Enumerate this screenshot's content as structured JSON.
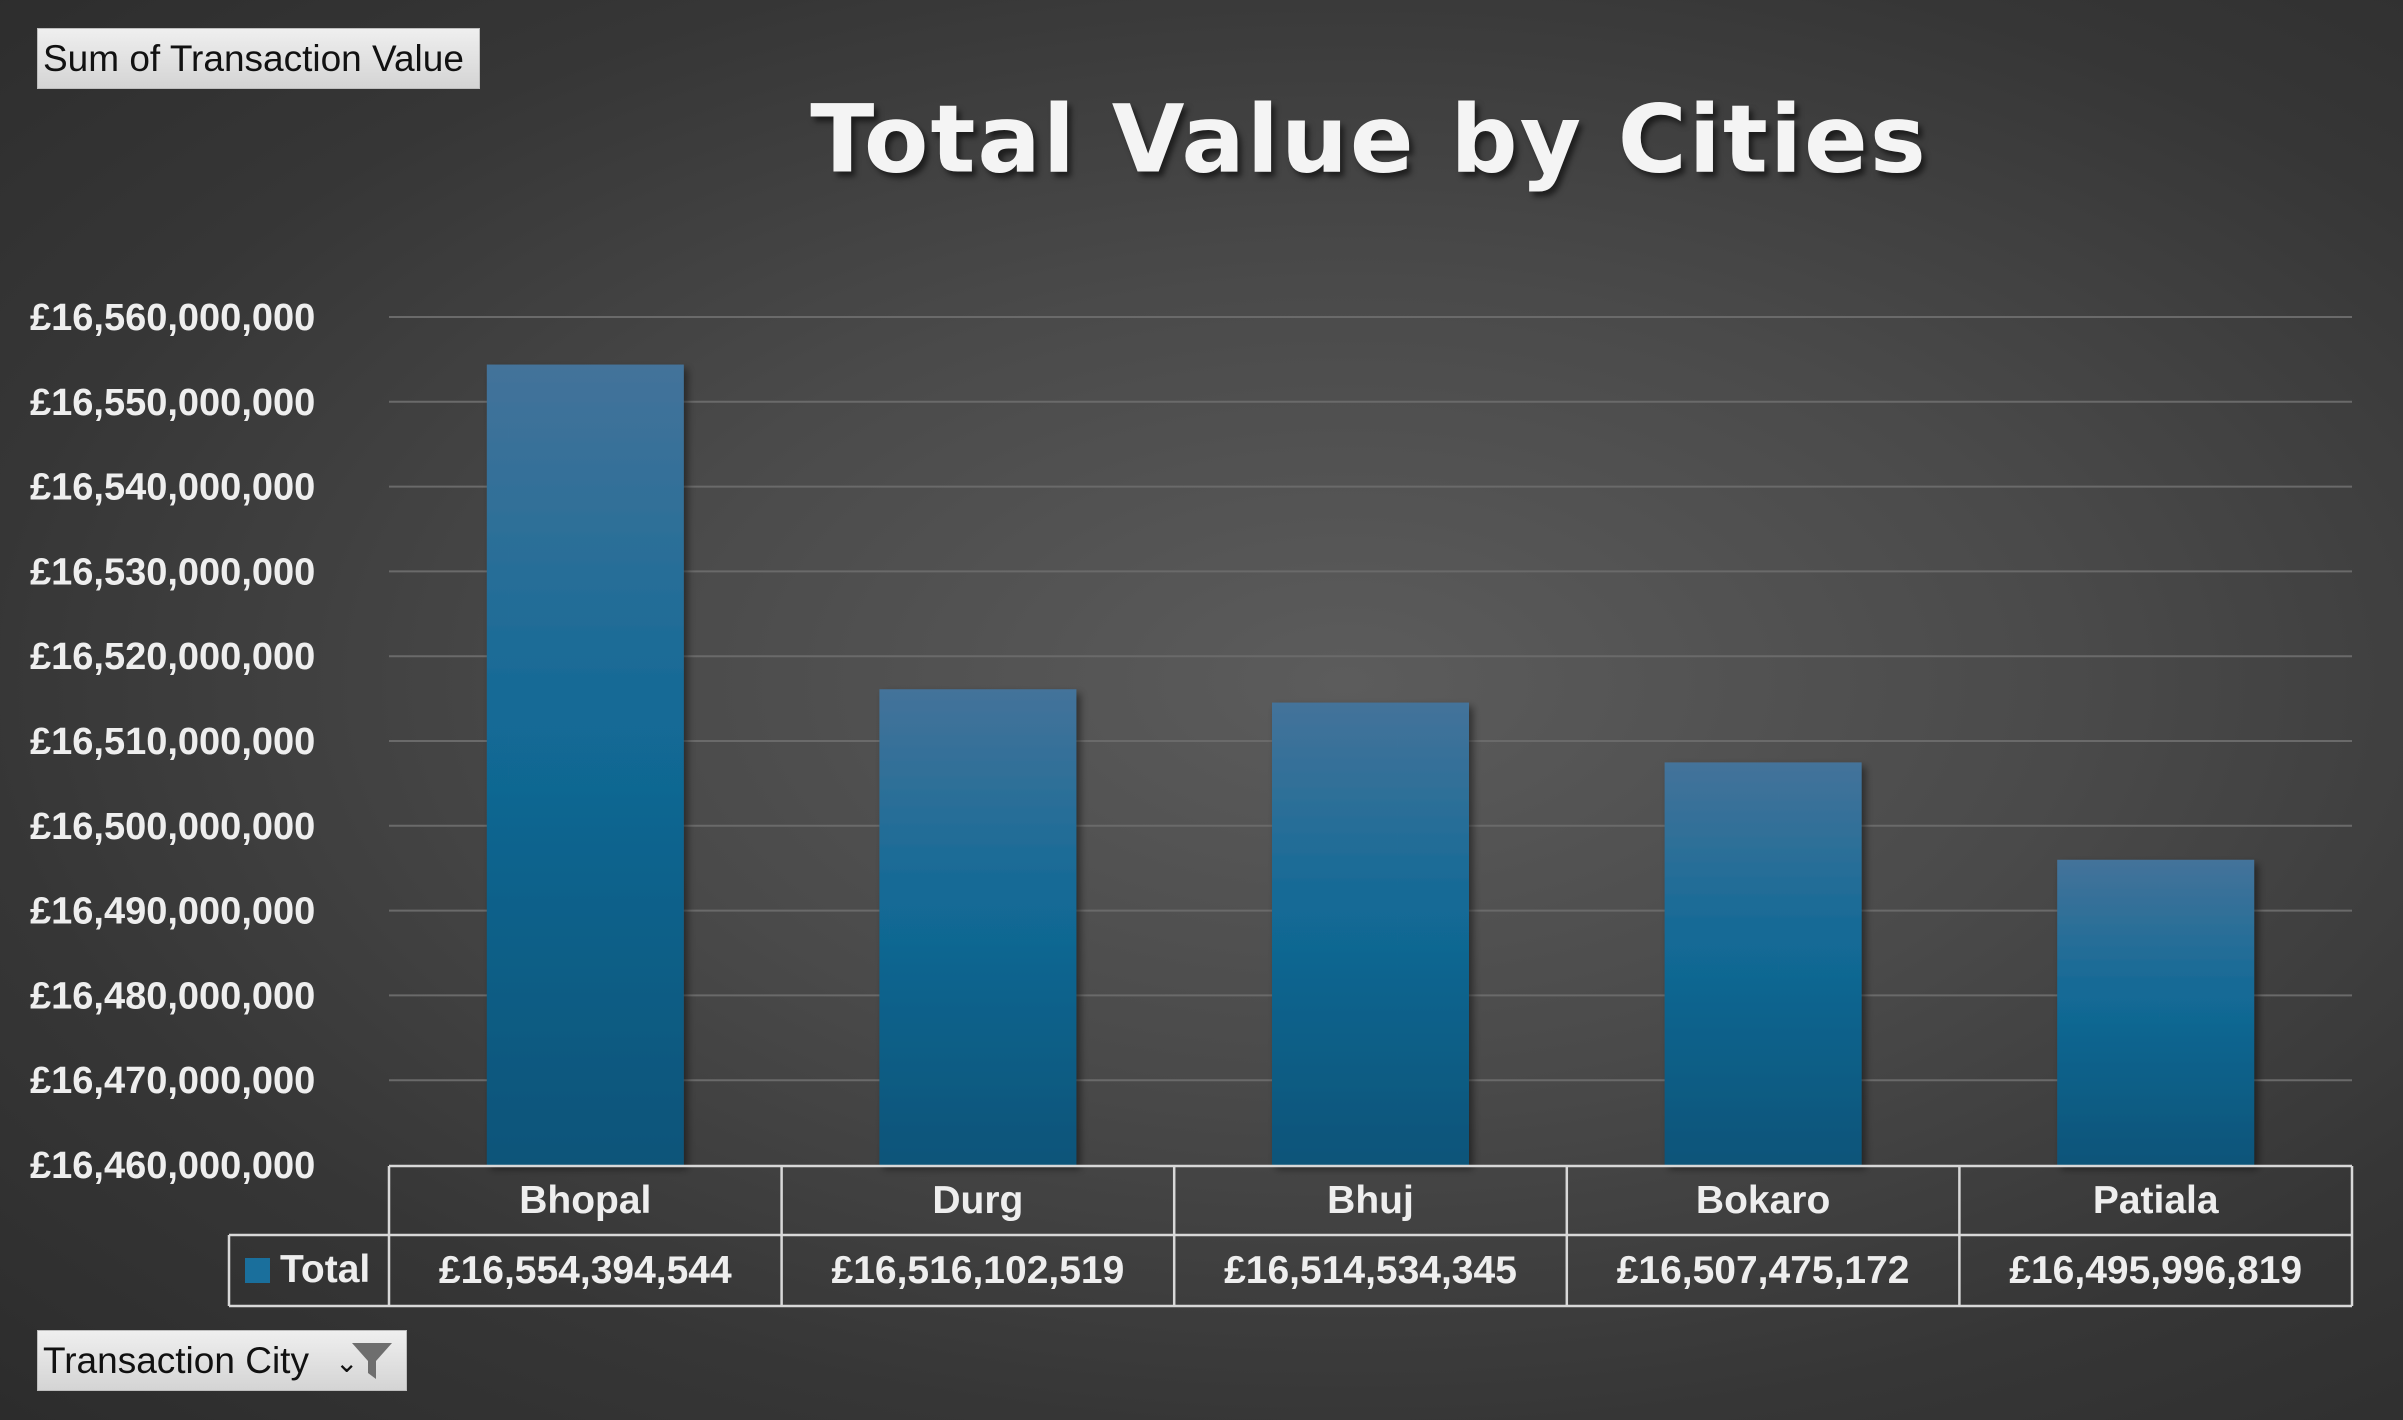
{
  "value_field_button": "Sum of Transaction Value",
  "city_field_button": "Transaction City",
  "chart_data": {
    "type": "bar",
    "title": "Total Value by Cities",
    "categories": [
      "Bhopal",
      "Durg",
      "Bhuj",
      "Bokaro",
      "Patiala"
    ],
    "series": [
      {
        "name": "Total",
        "values": [
          16554394544,
          16516102519,
          16514534345,
          16507475172,
          16495996819
        ],
        "value_labels": [
          "£16,554,394,544",
          "£16,516,102,519",
          "£16,514,534,345",
          "£16,507,475,172",
          "£16,495,996,819"
        ]
      }
    ],
    "ylim": [
      16460000000,
      16560000000
    ],
    "y_ticks": [
      16460000000,
      16470000000,
      16480000000,
      16490000000,
      16500000000,
      16510000000,
      16520000000,
      16530000000,
      16540000000,
      16550000000,
      16560000000
    ],
    "y_tick_labels": [
      "£16,460,000,000",
      "£16,470,000,000",
      "£16,480,000,000",
      "£16,490,000,000",
      "£16,500,000,000",
      "£16,510,000,000",
      "£16,520,000,000",
      "£16,530,000,000",
      "£16,540,000,000",
      "£16,550,000,000",
      "£16,560,000,000"
    ],
    "grid": true,
    "data_table": true,
    "colors": {
      "bar_top": "#44739a",
      "bar_mid": "#126a96",
      "bar_bottom": "#0b5479",
      "legend_key": "#1a6f9c",
      "gridline": "#6a6a6a",
      "table_border": "#d8d8d8"
    }
  }
}
